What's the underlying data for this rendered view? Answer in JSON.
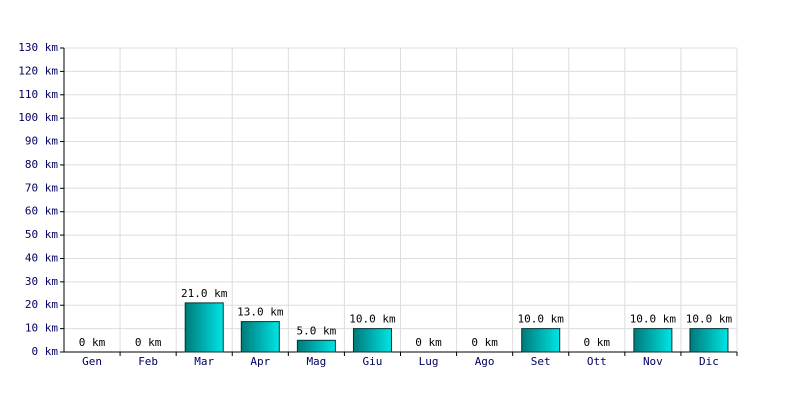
{
  "chart_data": {
    "type": "bar",
    "categories": [
      "Gen",
      "Feb",
      "Mar",
      "Apr",
      "Mag",
      "Giu",
      "Lug",
      "Ago",
      "Set",
      "Ott",
      "Nov",
      "Dic"
    ],
    "values": [
      0,
      0,
      21,
      13,
      5,
      10,
      0,
      0,
      10,
      0,
      10,
      10
    ],
    "value_labels": [
      "0 km",
      "0 km",
      "21.0 km",
      "13.0 km",
      "5.0 km",
      "10.0 km",
      "0 km",
      "0 km",
      "10.0 km",
      "0 km",
      "10.0 km",
      "10.0 km"
    ],
    "color": "#00e5e5",
    "ylim": [
      0,
      130
    ],
    "yticks": [
      {
        "value": 0,
        "label": "0 km"
      },
      {
        "value": 10,
        "label": "10 km"
      },
      {
        "value": 20,
        "label": "20 km"
      },
      {
        "value": 30,
        "label": "30 km"
      },
      {
        "value": 40,
        "label": "40 km"
      },
      {
        "value": 50,
        "label": "50 km"
      },
      {
        "value": 60,
        "label": "60 km"
      },
      {
        "value": 70,
        "label": "70 km"
      },
      {
        "value": 80,
        "label": "80 km"
      },
      {
        "value": 90,
        "label": "90 km"
      },
      {
        "value": 100,
        "label": "100 km"
      },
      {
        "value": 110,
        "label": "110 km"
      },
      {
        "value": 120,
        "label": "120 km"
      },
      {
        "value": 130,
        "label": "130 km"
      }
    ],
    "grid": true
  }
}
